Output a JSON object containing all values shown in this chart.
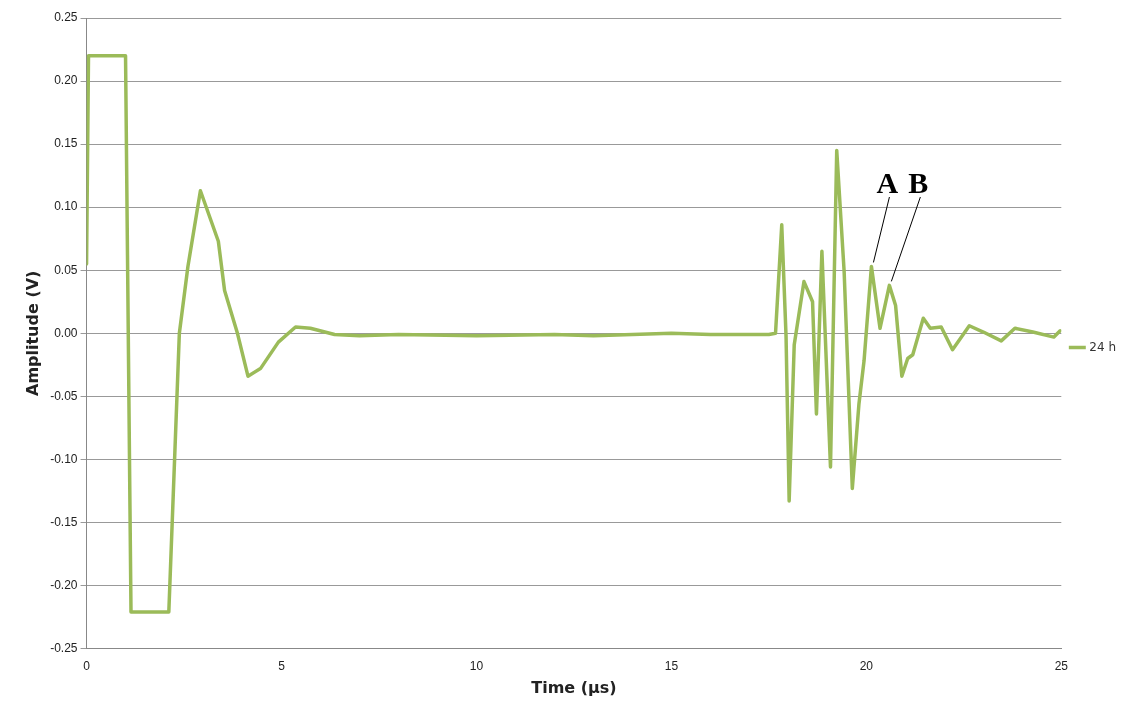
{
  "chart_data": {
    "type": "line",
    "xlabel": "Time (µs)",
    "ylabel": "Amplitude (V)",
    "xlim": [
      0,
      25
    ],
    "xticks": [
      0,
      5,
      10,
      15,
      20,
      25
    ],
    "ylim": [
      -0.25,
      0.25
    ],
    "yticks": [
      {
        "value": -0.25,
        "label": "-0.25"
      },
      {
        "value": -0.2,
        "label": "-0.20"
      },
      {
        "value": -0.15,
        "label": "-0.15"
      },
      {
        "value": -0.1,
        "label": "-0.10"
      },
      {
        "value": -0.05,
        "label": "-0.05"
      },
      {
        "value": 0,
        "label": "0.00"
      },
      {
        "value": 0.05,
        "label": "0.05"
      },
      {
        "value": 0.1,
        "label": "0.10"
      },
      {
        "value": 0.15,
        "label": "0.15"
      },
      {
        "value": 0.2,
        "label": "0.20"
      },
      {
        "value": 0.25,
        "label": "0.25"
      }
    ],
    "grid": "y",
    "legend": "right",
    "marker": "none",
    "line_style": "solid",
    "annotations": [
      {
        "text": "A",
        "x": 20.13,
        "y": 0.053
      },
      {
        "text": "B",
        "x": 20.59,
        "y": 0.038
      }
    ],
    "series": [
      {
        "name": "24 h",
        "color": "#9bbb59",
        "x": [
          0,
          0.05,
          1.0,
          1.14,
          2.11,
          2.38,
          2.6,
          2.92,
          3.38,
          3.54,
          3.87,
          4.14,
          4.46,
          4.92,
          5.36,
          5.74,
          6.36,
          7,
          8,
          10,
          12,
          13,
          15,
          16,
          17.5,
          17.67,
          17.83,
          17.94,
          18.02,
          18.15,
          18.4,
          18.62,
          18.72,
          18.86,
          19.08,
          19.24,
          19.43,
          19.64,
          19.81,
          19.94,
          20.13,
          20.35,
          20.59,
          20.75,
          20.91,
          21.06,
          21.19,
          21.46,
          21.64,
          21.92,
          22.21,
          22.64,
          23.0,
          23.46,
          23.81,
          24.27,
          24.81,
          24.97
        ],
        "values": [
          0.055,
          0.22,
          0.22,
          -0.221,
          -0.221,
          0.0,
          0.053,
          0.113,
          0.073,
          0.034,
          0.0,
          -0.034,
          -0.028,
          -0.007,
          0.005,
          0.004,
          -0.001,
          -0.002,
          -0.001,
          -0.002,
          -0.001,
          -0.002,
          0.0,
          -0.001,
          -0.001,
          0.0,
          0.086,
          -0.002,
          -0.133,
          -0.009,
          0.041,
          0.025,
          -0.064,
          0.065,
          -0.106,
          0.145,
          0.049,
          -0.123,
          -0.056,
          -0.022,
          0.053,
          0.004,
          0.038,
          0.022,
          -0.034,
          -0.02,
          -0.017,
          0.012,
          0.004,
          0.005,
          -0.013,
          0.006,
          0.001,
          -0.006,
          0.004,
          0.001,
          -0.003,
          0.002
        ]
      }
    ]
  }
}
